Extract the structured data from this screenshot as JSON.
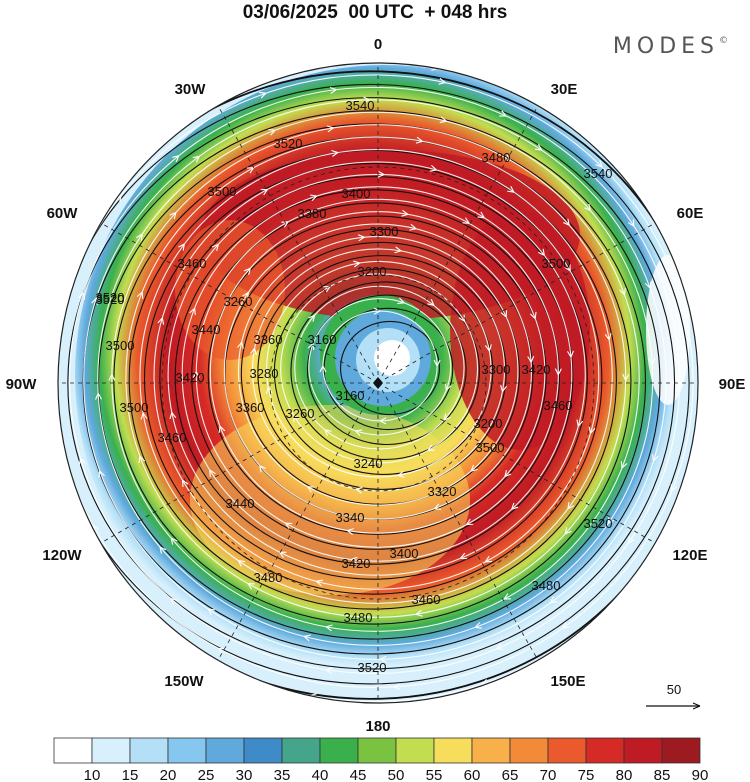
{
  "title": "03/06/2025  00 UTC  + 048 hrs",
  "brand": "MODES",
  "brand_mark": "©",
  "longitude_labels": {
    "n": "0",
    "n30e": "30E",
    "n60e": "60E",
    "e": "90E",
    "s120e": "120E",
    "s150e": "150E",
    "s": "180",
    "s150w": "150W",
    "s120w": "120W",
    "w": "90W",
    "n60w": "60W",
    "n30w": "30W"
  },
  "contour_labels": [
    "3540",
    "3540",
    "3520",
    "3480",
    "3400",
    "3380",
    "3500",
    "3500",
    "3460",
    "3300",
    "3260",
    "3200",
    "3520",
    "3440",
    "3360",
    "3280",
    "3160",
    "3300",
    "3420",
    "3500",
    "3420",
    "3360",
    "3260",
    "3160",
    "3200",
    "3460",
    "3500",
    "3460",
    "3240",
    "3320",
    "3340",
    "3440",
    "3500",
    "3400",
    "3420",
    "3480",
    "3460",
    "3480",
    "3480",
    "3520",
    "3520",
    "3520"
  ],
  "wind_reference": {
    "speed": "50"
  },
  "colorbar": {
    "ticks": [
      "10",
      "15",
      "20",
      "25",
      "30",
      "35",
      "40",
      "45",
      "50",
      "55",
      "60",
      "65",
      "70",
      "75",
      "80",
      "85",
      "90"
    ],
    "colors": [
      "#ffffff",
      "#d7f0fc",
      "#b4e0f7",
      "#86c7ef",
      "#5fa9dd",
      "#3e8bc8",
      "#44a58a",
      "#3ab04d",
      "#7ac341",
      "#c2dd50",
      "#f7dd5c",
      "#f8b04b",
      "#f38a37",
      "#ea5a2c",
      "#d62a26",
      "#bf1b24",
      "#9c1a20"
    ]
  },
  "chart_data": {
    "type": "heatmap",
    "projection": "polar stereographic (south pole centred)",
    "field": "wind speed (shaded) with geopotential height contours",
    "color_levels": [
      10,
      15,
      20,
      25,
      30,
      35,
      40,
      45,
      50,
      55,
      60,
      65,
      70,
      75,
      80,
      85,
      90
    ],
    "contour_interval": 20,
    "contour_range": [
      3160,
      3540
    ]
  }
}
